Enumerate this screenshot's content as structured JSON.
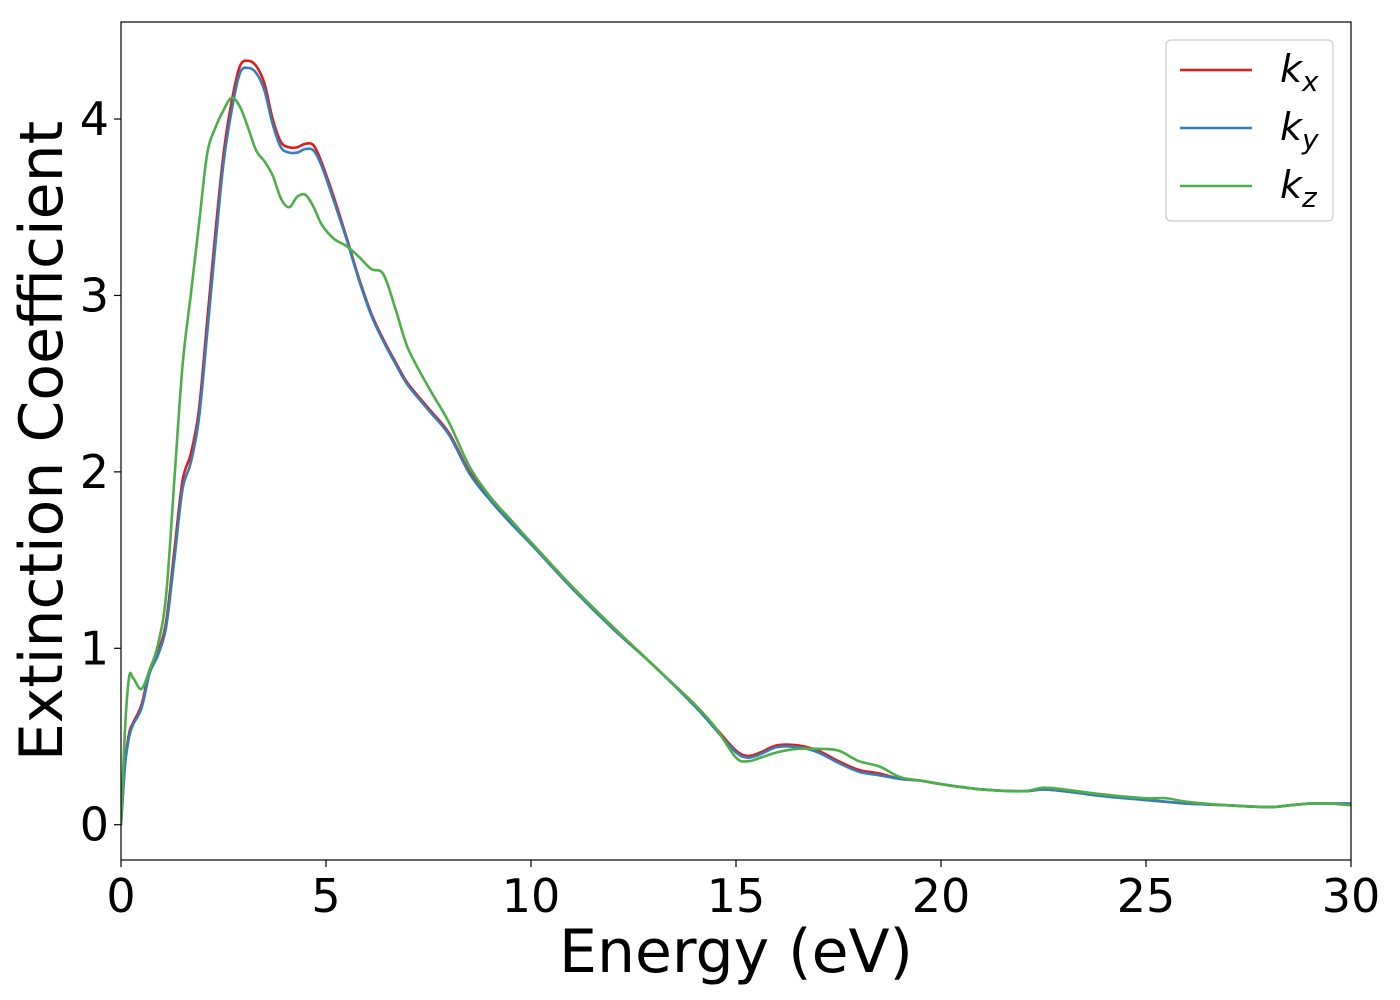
{
  "chart_data": {
    "type": "line",
    "title": "",
    "xlabel": "Energy (eV)",
    "ylabel": "Extinction Coefficient",
    "xlim": [
      0,
      30
    ],
    "ylim": [
      -0.2,
      4.55
    ],
    "xticks": [
      0,
      5,
      10,
      15,
      20,
      25,
      30
    ],
    "yticks": [
      0,
      1,
      2,
      3,
      4
    ],
    "grid": false,
    "legend_position": "top-right",
    "series": [
      {
        "name": "k",
        "subscript": "x",
        "color": "#e41a1c",
        "x": [
          0,
          0.1,
          0.2,
          0.3,
          0.5,
          0.7,
          0.9,
          1.1,
          1.3,
          1.5,
          1.7,
          1.9,
          2.1,
          2.3,
          2.5,
          2.7,
          2.9,
          3.1,
          3.3,
          3.5,
          3.7,
          3.9,
          4.1,
          4.3,
          4.5,
          4.7,
          4.9,
          5.2,
          5.5,
          5.8,
          6.1,
          6.4,
          6.7,
          7.0,
          7.5,
          8.0,
          8.5,
          9.0,
          9.5,
          10.0,
          11.0,
          12.0,
          13.0,
          14.0,
          14.5,
          15.0,
          15.3,
          15.6,
          16.0,
          16.5,
          17.0,
          17.5,
          18.0,
          18.5,
          19.0,
          19.5,
          20.0,
          21.0,
          22.0,
          22.5,
          23.0,
          24.0,
          25.0,
          25.5,
          26.0,
          27.0,
          28.0,
          28.5,
          29.0,
          29.5,
          30.0
        ],
        "y": [
          0.0,
          0.35,
          0.52,
          0.58,
          0.68,
          0.88,
          0.98,
          1.15,
          1.55,
          1.95,
          2.1,
          2.35,
          2.85,
          3.35,
          3.8,
          4.1,
          4.3,
          4.33,
          4.3,
          4.2,
          4.0,
          3.87,
          3.84,
          3.84,
          3.86,
          3.85,
          3.75,
          3.55,
          3.33,
          3.1,
          2.9,
          2.75,
          2.62,
          2.5,
          2.36,
          2.22,
          2.0,
          1.85,
          1.72,
          1.6,
          1.35,
          1.12,
          0.9,
          0.68,
          0.55,
          0.42,
          0.39,
          0.41,
          0.45,
          0.45,
          0.42,
          0.36,
          0.31,
          0.29,
          0.26,
          0.25,
          0.23,
          0.2,
          0.19,
          0.2,
          0.19,
          0.17,
          0.14,
          0.13,
          0.12,
          0.11,
          0.1,
          0.11,
          0.12,
          0.12,
          0.12
        ]
      },
      {
        "name": "k",
        "subscript": "y",
        "color": "#377eb8",
        "x": [
          0,
          0.1,
          0.2,
          0.3,
          0.5,
          0.7,
          0.9,
          1.1,
          1.3,
          1.5,
          1.7,
          1.9,
          2.1,
          2.3,
          2.5,
          2.7,
          2.9,
          3.1,
          3.3,
          3.5,
          3.7,
          3.9,
          4.1,
          4.3,
          4.5,
          4.7,
          4.9,
          5.2,
          5.5,
          5.8,
          6.1,
          6.4,
          6.7,
          7.0,
          7.5,
          8.0,
          8.5,
          9.0,
          9.5,
          10.0,
          11.0,
          12.0,
          13.0,
          14.0,
          14.5,
          15.0,
          15.3,
          15.6,
          16.0,
          16.5,
          17.0,
          17.5,
          18.0,
          18.5,
          19.0,
          19.5,
          20.0,
          21.0,
          22.0,
          22.5,
          23.0,
          24.0,
          25.0,
          25.5,
          26.0,
          27.0,
          28.0,
          28.5,
          29.0,
          29.5,
          30.0
        ],
        "y": [
          0.0,
          0.34,
          0.5,
          0.57,
          0.66,
          0.86,
          0.96,
          1.12,
          1.5,
          1.9,
          2.05,
          2.3,
          2.78,
          3.28,
          3.75,
          4.05,
          4.26,
          4.29,
          4.26,
          4.16,
          3.97,
          3.84,
          3.81,
          3.81,
          3.83,
          3.82,
          3.73,
          3.53,
          3.32,
          3.09,
          2.89,
          2.74,
          2.61,
          2.49,
          2.35,
          2.21,
          1.99,
          1.84,
          1.71,
          1.59,
          1.34,
          1.11,
          0.9,
          0.67,
          0.54,
          0.41,
          0.38,
          0.4,
          0.44,
          0.44,
          0.41,
          0.35,
          0.3,
          0.28,
          0.26,
          0.25,
          0.23,
          0.2,
          0.19,
          0.2,
          0.19,
          0.16,
          0.14,
          0.13,
          0.12,
          0.11,
          0.1,
          0.11,
          0.12,
          0.12,
          0.12
        ]
      },
      {
        "name": "k",
        "subscript": "z",
        "color": "#4daf4a",
        "x": [
          0,
          0.1,
          0.2,
          0.3,
          0.5,
          0.7,
          0.9,
          1.1,
          1.3,
          1.5,
          1.7,
          1.9,
          2.1,
          2.3,
          2.5,
          2.7,
          2.9,
          3.1,
          3.3,
          3.5,
          3.7,
          3.9,
          4.1,
          4.3,
          4.5,
          4.7,
          4.9,
          5.2,
          5.5,
          5.8,
          6.1,
          6.4,
          6.7,
          7.0,
          7.5,
          8.0,
          8.5,
          9.0,
          9.5,
          10.0,
          11.0,
          12.0,
          13.0,
          14.0,
          14.5,
          15.0,
          15.3,
          15.6,
          16.0,
          16.5,
          17.0,
          17.5,
          18.0,
          18.5,
          19.0,
          19.5,
          20.0,
          21.0,
          22.0,
          22.5,
          23.0,
          24.0,
          25.0,
          25.5,
          26.0,
          27.0,
          28.0,
          28.5,
          29.0,
          29.5,
          30.0
        ],
        "y": [
          0.0,
          0.55,
          0.84,
          0.83,
          0.77,
          0.88,
          1.02,
          1.3,
          1.95,
          2.6,
          3.0,
          3.4,
          3.8,
          3.95,
          4.05,
          4.12,
          4.07,
          3.95,
          3.82,
          3.76,
          3.68,
          3.55,
          3.5,
          3.56,
          3.57,
          3.5,
          3.4,
          3.32,
          3.28,
          3.22,
          3.15,
          3.12,
          2.92,
          2.7,
          2.48,
          2.28,
          2.03,
          1.86,
          1.73,
          1.6,
          1.35,
          1.12,
          0.9,
          0.68,
          0.55,
          0.38,
          0.36,
          0.38,
          0.41,
          0.43,
          0.43,
          0.42,
          0.36,
          0.33,
          0.27,
          0.25,
          0.23,
          0.2,
          0.19,
          0.21,
          0.2,
          0.17,
          0.15,
          0.15,
          0.13,
          0.11,
          0.1,
          0.11,
          0.12,
          0.12,
          0.11
        ]
      }
    ]
  }
}
